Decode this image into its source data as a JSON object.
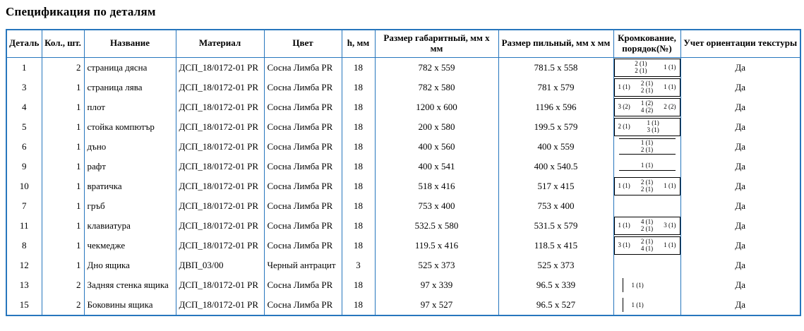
{
  "title": "Спецификация по деталям",
  "texture_yes": "Да",
  "spec_table": {
    "headers": [
      "Деталь",
      "Кол., шт.",
      "Название",
      "Материал",
      "Цвет",
      "h, мм",
      "Размер габаритный, мм х мм",
      "Размер пильный, мм х мм",
      "Кромкование, порядок(№)",
      "Учет ориентации текстуры"
    ],
    "rows": [
      {
        "detail": "1",
        "qty": "2",
        "name": "страница дясна",
        "material": "ДСП_18/0172-01 PR",
        "color": "Сосна Лимба PR",
        "h": "18",
        "size_overall": "782 x 559",
        "size_saw": "781.5 x 558",
        "edging": {
          "style": "box",
          "left": "",
          "center_top": "2 (1)",
          "center_bottom": "2 (1)",
          "right": "1 (1)"
        },
        "texture": "Да"
      },
      {
        "detail": "3",
        "qty": "1",
        "name": "страница лява",
        "material": "ДСП_18/0172-01 PR",
        "color": "Сосна Лимба PR",
        "h": "18",
        "size_overall": "782 x 580",
        "size_saw": "781 x 579",
        "edging": {
          "style": "box",
          "left": "1 (1)",
          "center_top": "2 (1)",
          "center_bottom": "2 (1)",
          "right": "1 (1)"
        },
        "texture": "Да"
      },
      {
        "detail": "4",
        "qty": "1",
        "name": "плот",
        "material": "ДСП_18/0172-01 PR",
        "color": "Сосна Лимба PR",
        "h": "18",
        "size_overall": "1200 x 600",
        "size_saw": "1196 x 596",
        "edging": {
          "style": "box",
          "left": "3 (2)",
          "center_top": "1 (2)",
          "center_bottom": "4 (2)",
          "right": "2 (2)"
        },
        "texture": "Да"
      },
      {
        "detail": "5",
        "qty": "1",
        "name": "стойка компютър",
        "material": "ДСП_18/0172-01 PR",
        "color": "Сосна Лимба PR",
        "h": "18",
        "size_overall": "200 x 580",
        "size_saw": "199.5 x 579",
        "edging": {
          "style": "box",
          "left": "2 (1)",
          "center_top": "1 (1)",
          "center_bottom": "3 (1)",
          "right": ""
        },
        "texture": "Да"
      },
      {
        "detail": "6",
        "qty": "1",
        "name": "дъно",
        "material": "ДСП_18/0172-01 PR",
        "color": "Сосна Лимба PR",
        "h": "18",
        "size_overall": "400 x 560",
        "size_saw": "400 x 559",
        "edging": {
          "style": "hlines",
          "center_top": "1 (1)",
          "center_bottom": "2 (1)"
        },
        "texture": "Да"
      },
      {
        "detail": "9",
        "qty": "1",
        "name": "рафт",
        "material": "ДСП_18/0172-01 PR",
        "color": "Сосна Лимба PR",
        "h": "18",
        "size_overall": "400 x 541",
        "size_saw": "400 x 540.5",
        "edging": {
          "style": "underline",
          "label": "1 (1)"
        },
        "texture": "Да"
      },
      {
        "detail": "10",
        "qty": "1",
        "name": "вратичка",
        "material": "ДСП_18/0172-01 PR",
        "color": "Сосна Лимба PR",
        "h": "18",
        "size_overall": "518 x 416",
        "size_saw": "517 x 415",
        "edging": {
          "style": "box",
          "left": "1 (1)",
          "center_top": "2 (1)",
          "center_bottom": "2 (1)",
          "right": "1 (1)"
        },
        "texture": "Да"
      },
      {
        "detail": "7",
        "qty": "1",
        "name": "гръб",
        "material": "ДСП_18/0172-01 PR",
        "color": "Сосна Лимба PR",
        "h": "18",
        "size_overall": "753 x 400",
        "size_saw": "753 x 400",
        "edging": {
          "style": "none"
        },
        "texture": "Да"
      },
      {
        "detail": "11",
        "qty": "1",
        "name": "клавиатура",
        "material": "ДСП_18/0172-01 PR",
        "color": "Сосна Лимба PR",
        "h": "18",
        "size_overall": "532.5 x 580",
        "size_saw": "531.5 x 579",
        "edging": {
          "style": "box",
          "left": "1 (1)",
          "center_top": "4 (1)",
          "center_bottom": "2 (1)",
          "right": "3 (1)"
        },
        "texture": "Да"
      },
      {
        "detail": "8",
        "qty": "1",
        "name": "чекмедже",
        "material": "ДСП_18/0172-01 PR",
        "color": "Сосна Лимба PR",
        "h": "18",
        "size_overall": "119.5 x 416",
        "size_saw": "118.5 x 415",
        "edging": {
          "style": "box",
          "left": "3 (1)",
          "center_top": "2 (1)",
          "center_bottom": "4 (1)",
          "right": "1 (1)"
        },
        "texture": "Да"
      },
      {
        "detail": "12",
        "qty": "1",
        "name": "Дно ящика",
        "material": "ДВП_03/00",
        "color": "Черный антрацит",
        "h": "3",
        "size_overall": "525 x 373",
        "size_saw": "525 x 373",
        "edging": {
          "style": "none"
        },
        "texture": "Да"
      },
      {
        "detail": "13",
        "qty": "2",
        "name": "Задняя стенка ящика",
        "material": "ДСП_18/0172-01 PR",
        "color": "Сосна Лимба PR",
        "h": "18",
        "size_overall": "97 x 339",
        "size_saw": "96.5 x 339",
        "edging": {
          "style": "leftbar",
          "label": "1 (1)"
        },
        "texture": "Да"
      },
      {
        "detail": "15",
        "qty": "2",
        "name": "Боковины ящика",
        "material": "ДСП_18/0172-01 PR",
        "color": "Сосна Лимба PR",
        "h": "18",
        "size_overall": "97 x 527",
        "size_saw": "96.5 x 527",
        "edging": {
          "style": "leftbar",
          "label": "1 (1)"
        },
        "texture": "Да"
      }
    ]
  },
  "colors": {
    "table_border": "#2776bd",
    "text": "#000000",
    "background": "#ffffff"
  }
}
